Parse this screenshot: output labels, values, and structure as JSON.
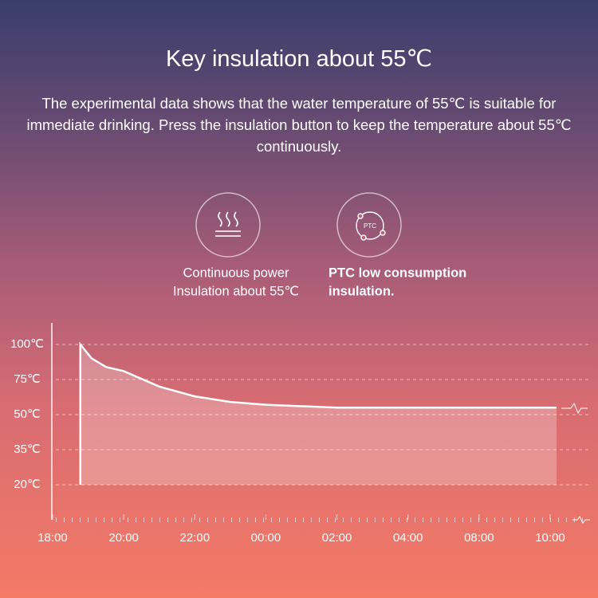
{
  "header": {
    "title": "Key insulation about 55℃",
    "description": "The experimental data shows that the water temperature of 55℃ is suitable for immediate drinking. Press the insulation button to keep the temperature about 55℃ continuously."
  },
  "features": [
    {
      "lines": [
        "Continuous power",
        "Insulation about 55℃"
      ]
    },
    {
      "icon_text": "PTC",
      "lines": [
        "PTC low consumption",
        "insulation."
      ]
    }
  ],
  "chart_data": {
    "type": "line",
    "x": [
      0.39,
      0.39,
      0.55,
      0.75,
      1,
      1.5,
      2,
      2.5,
      3,
      3.5,
      4,
      5,
      6,
      7.09
    ],
    "series": [
      {
        "color": "#ffffff",
        "values": [
          20,
          100,
          90,
          84,
          81,
          70,
          63,
          59,
          57,
          56,
          55,
          55,
          55,
          55
        ]
      }
    ],
    "xlim": [
      0,
      7
    ],
    "xticks": [
      {
        "value": 0,
        "label": "18:00"
      },
      {
        "value": 1,
        "label": "20:00"
      },
      {
        "value": 2,
        "label": "22:00"
      },
      {
        "value": 3,
        "label": "00:00"
      },
      {
        "value": 4,
        "label": "02:00"
      },
      {
        "value": 5,
        "label": "04:00"
      },
      {
        "value": 6,
        "label": "08:00"
      },
      {
        "value": 7,
        "label": "10:00"
      }
    ],
    "yticks": [
      {
        "value": 100,
        "label": "100℃"
      },
      {
        "value": 75,
        "label": "75℃"
      },
      {
        "value": 50,
        "label": "50℃"
      },
      {
        "value": 35,
        "label": "35℃"
      },
      {
        "value": 20,
        "label": "20℃"
      }
    ],
    "grid": true
  }
}
